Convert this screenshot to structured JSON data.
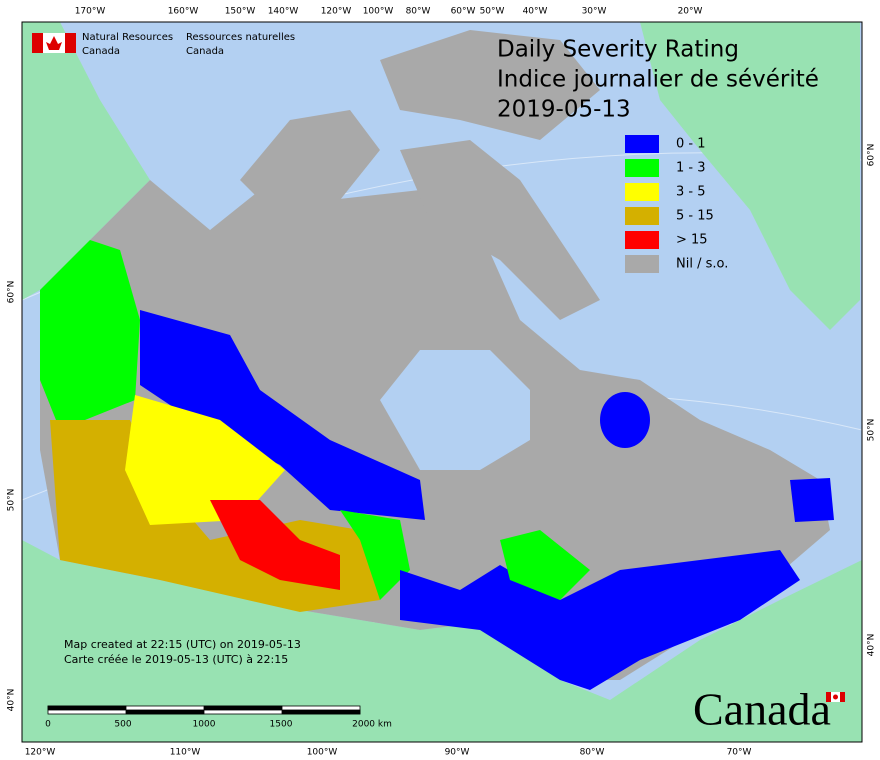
{
  "logo": {
    "en": [
      "Natural Resources",
      "Canada"
    ],
    "fr": [
      "Ressources naturelles",
      "Canada"
    ]
  },
  "title": [
    "Daily Severity Rating",
    "Indice journalier de sévérité",
    "2019-05-13"
  ],
  "legend": [
    {
      "label": "0 - 1",
      "color": "#0000ff"
    },
    {
      "label": "1 - 3",
      "color": "#00ff00"
    },
    {
      "label": "3 - 5",
      "color": "#ffff00"
    },
    {
      "label": "5 - 15",
      "color": "#d4b000"
    },
    {
      "label": "> 15",
      "color": "#ff0000"
    },
    {
      "label": "Nil / s.o.",
      "color": "#a9a9a9"
    }
  ],
  "graticule": {
    "top": [
      "170°W",
      "160°W",
      "150°W",
      "140°W",
      "120°W",
      "100°W",
      "80°W",
      "60°W",
      "50°W",
      "40°W",
      "30°W",
      "20°W"
    ],
    "bottom": [
      "120°W",
      "110°W",
      "100°W",
      "90°W",
      "80°W",
      "70°W"
    ],
    "left": [
      "60°N",
      "50°N",
      "40°N"
    ],
    "right": [
      "60°N",
      "50°N",
      "40°N"
    ]
  },
  "notes": [
    "Map created at 22:15 (UTC) on 2019-05-13",
    "Carte créée le 2019-05-13 (UTC) à 22:15"
  ],
  "scale": [
    "0",
    "500",
    "1000",
    "1500",
    "2000  km"
  ],
  "wordmark": "Canada"
}
